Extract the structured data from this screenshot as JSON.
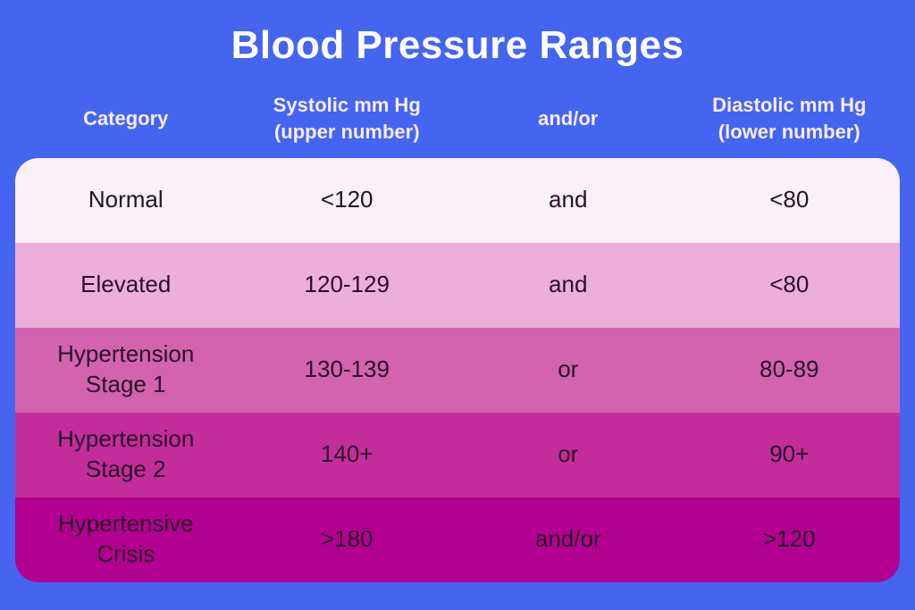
{
  "title": "Blood Pressure Ranges",
  "colors": {
    "background": "#4565F0",
    "title_text": "#FFFFFF",
    "header_text": "#F8ECF7",
    "row_text": "#2A0F26",
    "rows": [
      "#FBEFF8",
      "#EBAFD9",
      "#D263AF",
      "#C32D9A",
      "#B20090"
    ]
  },
  "table": {
    "headers": [
      {
        "line1": "Category"
      },
      {
        "line1": "Systolic mm Hg",
        "line2": "(upper number)"
      },
      {
        "line1": "and/or"
      },
      {
        "line1": "Diastolic mm Hg",
        "line2": "(lower number)"
      }
    ],
    "rows": [
      {
        "category": "Normal",
        "systolic": "<120",
        "connector": "and",
        "diastolic": "<80"
      },
      {
        "category": "Elevated",
        "systolic": "120-129",
        "connector": "and",
        "diastolic": "<80"
      },
      {
        "category": "Hypertension Stage 1",
        "systolic": "130-139",
        "connector": "or",
        "diastolic": "80-89"
      },
      {
        "category": "Hypertension Stage 2",
        "systolic": "140+",
        "connector": "or",
        "diastolic": "90+"
      },
      {
        "category": "Hypertensive Crisis",
        "systolic": ">180",
        "connector": "and/or",
        "diastolic": ">120"
      }
    ]
  },
  "chart_data": {
    "type": "table",
    "title": "Blood Pressure Ranges",
    "columns": [
      "Category",
      "Systolic mm Hg (upper number)",
      "and/or",
      "Diastolic mm Hg (lower number)"
    ],
    "rows": [
      [
        "Normal",
        "<120",
        "and",
        "<80"
      ],
      [
        "Elevated",
        "120-129",
        "and",
        "<80"
      ],
      [
        "Hypertension Stage 1",
        "130-139",
        "or",
        "80-89"
      ],
      [
        "Hypertension Stage 2",
        "140+",
        "or",
        "90+"
      ],
      [
        "Hypertensive Crisis",
        ">180",
        "and/or",
        ">120"
      ]
    ]
  }
}
